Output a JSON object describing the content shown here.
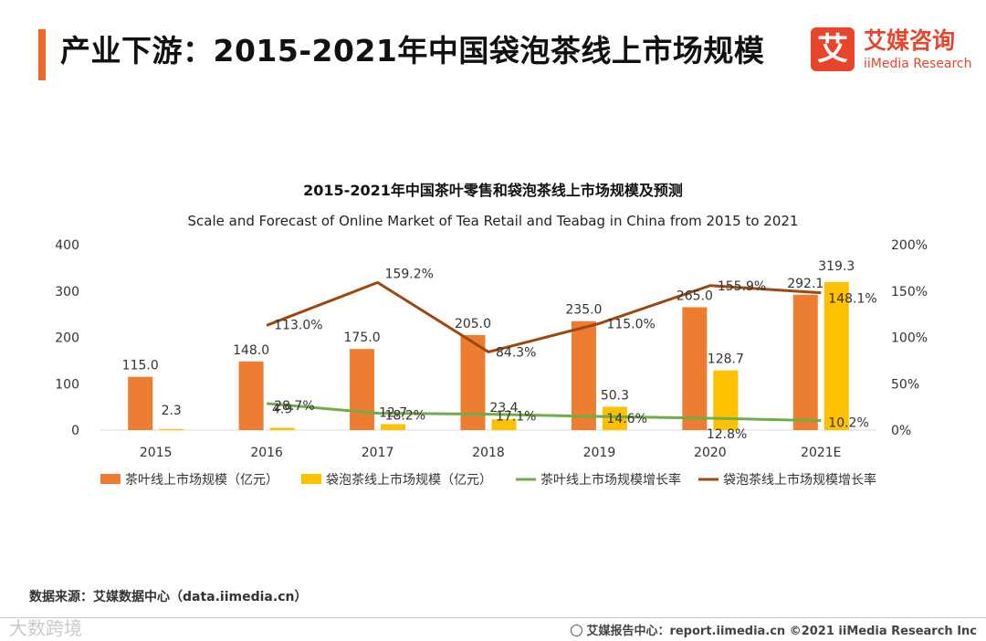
{
  "header": {
    "title": "产业下游：2015-2021年中国袋泡茶线上市场规模",
    "logo_mark": "艾",
    "logo_cn": "艾媒咨询",
    "logo_en": "iiMedia Research"
  },
  "footer": {
    "source": "数据来源：艾媒数据中心（data.iimedia.cn）",
    "report": "艾媒报告中心：report.iimedia.cn  ©2021  iiMedia Research  Inc",
    "watermark": "大数跨境"
  },
  "colors": {
    "accent": "#ec6a2c",
    "tea_bar": "#ed7d31",
    "teabag_bar": "#ffc000",
    "tea_line": "#70ad47",
    "teabag_line": "#9e480e"
  },
  "chart_data": {
    "type": "bar",
    "title": "2015-2021年中国茶叶零售和袋泡茶线上市场规模及预测",
    "subtitle": "Scale and Forecast of Online Market of Tea Retail and Teabag in China from 2015 to 2021",
    "categories": [
      "2015",
      "2016",
      "2017",
      "2018",
      "2019",
      "2020",
      "2021E"
    ],
    "ylim": [
      0,
      400
    ],
    "y_ticks": [
      "0",
      "100",
      "200",
      "300",
      "400"
    ],
    "y2lim": [
      0,
      200
    ],
    "y2_ticks": [
      "0%",
      "50%",
      "100%",
      "150%",
      "200%"
    ],
    "series": [
      {
        "name": "茶叶线上市场规模（亿元）",
        "kind": "bar",
        "axis": "left",
        "color": "#ed7d31",
        "values": [
          115.0,
          148.0,
          175.0,
          205.0,
          235.0,
          265.0,
          292.1
        ],
        "labels": [
          "115.0",
          "148.0",
          "175.0",
          "205.0",
          "235.0",
          "265.0",
          "292.1"
        ]
      },
      {
        "name": "袋泡茶线上市场规模（亿元）",
        "kind": "bar",
        "axis": "left",
        "color": "#ffc000",
        "values": [
          2.3,
          4.9,
          12.7,
          23.4,
          50.3,
          128.7,
          319.3
        ],
        "labels": [
          "2.3",
          "4.9",
          "12.7",
          "23.4",
          "50.3",
          "128.7",
          "319.3"
        ]
      },
      {
        "name": "茶叶线上市场规模增长率",
        "kind": "line",
        "axis": "right",
        "color": "#70ad47",
        "values": [
          null,
          28.7,
          18.2,
          17.1,
          14.6,
          12.8,
          10.2
        ],
        "labels": [
          "",
          "28.7%",
          "18.2%",
          "17.1%",
          "14.6%",
          "12.8%",
          "10.2%"
        ]
      },
      {
        "name": "袋泡茶线上市场规模增长率",
        "kind": "line",
        "axis": "right",
        "color": "#9e480e",
        "values": [
          null,
          113.0,
          159.2,
          84.3,
          115.0,
          155.9,
          148.1
        ],
        "labels": [
          "",
          "113.0%",
          "159.2%",
          "84.3%",
          "115.0%",
          "155.9%",
          "148.1%"
        ]
      }
    ]
  }
}
